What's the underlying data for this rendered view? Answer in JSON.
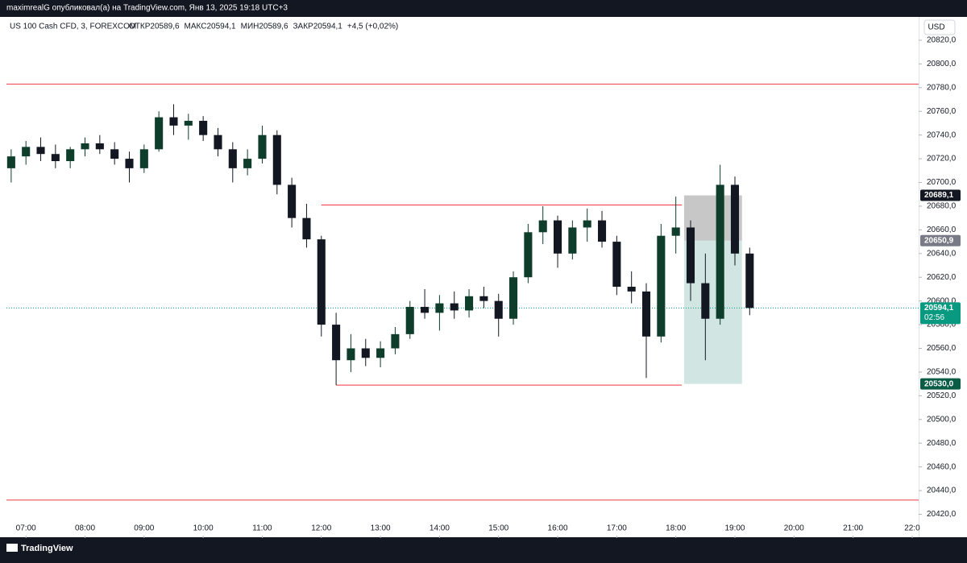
{
  "publisher_line": "maximrealG опубликовал(а) на TradingView.com, Янв 13, 2025 19:18 UTC+3",
  "brand": "TradingView",
  "currency_button": "USD",
  "chart_data": {
    "type": "candlestick",
    "title": "US 100 Cash CFD, 3, FOREXCOM",
    "ohlc_summary": [
      "ОТКР20589,6",
      "МАКС20594,1",
      "МИН20589,6",
      "ЗАКР20594,1",
      "+4,5 (+0,02%)"
    ],
    "up_color": "#0f3d2c",
    "down_color": "#131722",
    "x": [
      6.75,
      7,
      7.25,
      7.5,
      7.75,
      8,
      8.25,
      8.5,
      8.75,
      9,
      9.25,
      9.5,
      9.75,
      10,
      10.25,
      10.5,
      10.75,
      11,
      11.25,
      11.5,
      11.75,
      12,
      12.25,
      12.5,
      12.75,
      13,
      13.25,
      13.5,
      13.75,
      14,
      14.25,
      14.5,
      14.75,
      15,
      15.25,
      15.5,
      15.75,
      16,
      16.25,
      16.5,
      16.75,
      17,
      17.25,
      17.5,
      17.75,
      18,
      18.25,
      18.5,
      18.75,
      19,
      19.25
    ],
    "open": [
      20712,
      20722,
      20730,
      20724,
      20718,
      20728,
      20733,
      20728,
      20720,
      20712,
      20728,
      20755,
      20748,
      20752,
      20740,
      20728,
      20712,
      20720,
      20740,
      20698,
      20670,
      20652,
      20580,
      20550,
      20560,
      20552,
      20560,
      20572,
      20595,
      20590,
      20598,
      20592,
      20604,
      20600,
      20585,
      20620,
      20658,
      20668,
      20640,
      20662,
      20668,
      20650,
      20612,
      20608,
      20570,
      20655,
      20662,
      20615,
      20585,
      20698,
      20640
    ],
    "high": [
      20728,
      20735,
      20738,
      20732,
      20730,
      20738,
      20740,
      20734,
      20726,
      20732,
      20760,
      20766,
      20758,
      20756,
      20746,
      20734,
      20728,
      20748,
      20744,
      20704,
      20682,
      20655,
      20590,
      20572,
      20568,
      20566,
      20578,
      20600,
      20610,
      20605,
      20608,
      20610,
      20612,
      20606,
      20625,
      20665,
      20680,
      20672,
      20668,
      20678,
      20676,
      20655,
      20625,
      20615,
      20665,
      20688,
      20668,
      20640,
      20715,
      20705,
      20645
    ],
    "low": [
      20700,
      20715,
      20718,
      20712,
      20712,
      20722,
      20724,
      20715,
      20700,
      20708,
      20726,
      20740,
      20736,
      20735,
      20722,
      20700,
      20706,
      20716,
      20690,
      20662,
      20645,
      20570,
      20529,
      20540,
      20545,
      20544,
      20555,
      20568,
      20585,
      20575,
      20585,
      20586,
      20594,
      20570,
      20580,
      20615,
      20648,
      20628,
      20635,
      20650,
      20645,
      20605,
      20598,
      20535,
      20565,
      20640,
      20600,
      20550,
      20580,
      20630,
      20588
    ],
    "close": [
      20722,
      20730,
      20724,
      20718,
      20728,
      20733,
      20728,
      20720,
      20712,
      20728,
      20755,
      20748,
      20752,
      20740,
      20728,
      20712,
      20720,
      20740,
      20698,
      20670,
      20652,
      20580,
      20550,
      20560,
      20552,
      20560,
      20572,
      20595,
      20590,
      20598,
      20592,
      20604,
      20600,
      20585,
      20620,
      20658,
      20668,
      20640,
      20662,
      20668,
      20650,
      20612,
      20608,
      20570,
      20655,
      20662,
      20615,
      20585,
      20698,
      20640,
      20594.1
    ],
    "levels": [
      {
        "value": 20783,
        "color": "#f23645"
      },
      {
        "value": 20681,
        "color": "#f23645",
        "from": 12.0,
        "to": 18.1
      },
      {
        "value": 20529,
        "color": "#f23645",
        "from": 12.25,
        "to": 18.1
      },
      {
        "value": 20432,
        "color": "#f23645"
      }
    ],
    "position": {
      "from": 18.14,
      "to": 19.12,
      "entry": 20650.9,
      "stop": 20689.1,
      "target": 20530.0,
      "stop_color": "#a9a9a9",
      "target_color": "#b2d5d0"
    },
    "last_price": {
      "value": 20594.1,
      "label": "20594,1",
      "timer": "02:56",
      "color": "#089981"
    },
    "price_labels": [
      {
        "value": 20689.1,
        "label": "20689,1",
        "color": "#131722"
      },
      {
        "value": 20650.9,
        "label": "20650,9",
        "color": "#787b86"
      },
      {
        "value": 20530.0,
        "label": "20530,0",
        "color": "#0a5c45"
      }
    ],
    "xlim": [
      6.67,
      22.11
    ],
    "ylim": [
      20402,
      20839
    ],
    "xticks": [
      {
        "value": 7,
        "label": "07:00"
      },
      {
        "value": 8,
        "label": "08:00"
      },
      {
        "value": 9,
        "label": "09:00"
      },
      {
        "value": 10,
        "label": "10:00"
      },
      {
        "value": 11,
        "label": "11:00"
      },
      {
        "value": 12,
        "label": "12:00"
      },
      {
        "value": 13,
        "label": "13:00"
      },
      {
        "value": 14,
        "label": "14:00"
      },
      {
        "value": 15,
        "label": "15:00"
      },
      {
        "value": 16,
        "label": "16:00"
      },
      {
        "value": 17,
        "label": "17:00"
      },
      {
        "value": 18,
        "label": "18:00"
      },
      {
        "value": 19,
        "label": "19:00"
      },
      {
        "value": 20,
        "label": "20:00"
      },
      {
        "value": 21,
        "label": "21:00"
      },
      {
        "value": 22,
        "label": "22:0"
      }
    ],
    "yticks": [
      {
        "value": 20420,
        "label": "20420,0"
      },
      {
        "value": 20440,
        "label": "20440,0"
      },
      {
        "value": 20460,
        "label": "20460,0"
      },
      {
        "value": 20480,
        "label": "20480,0"
      },
      {
        "value": 20500,
        "label": "20500,0"
      },
      {
        "value": 20520,
        "label": "20520,0"
      },
      {
        "value": 20540,
        "label": "20540,0"
      },
      {
        "value": 20560,
        "label": "20560,0"
      },
      {
        "value": 20580,
        "label": "20580,0"
      },
      {
        "value": 20600,
        "label": "20600,0"
      },
      {
        "value": 20620,
        "label": "20620,0"
      },
      {
        "value": 20640,
        "label": "20640,0"
      },
      {
        "value": 20660,
        "label": "20660,0"
      },
      {
        "value": 20680,
        "label": "20680,0"
      },
      {
        "value": 20700,
        "label": "20700,0"
      },
      {
        "value": 20720,
        "label": "20720,0"
      },
      {
        "value": 20740,
        "label": "20740,0"
      },
      {
        "value": 20760,
        "label": "20760,0"
      },
      {
        "value": 20780,
        "label": "20780,0"
      },
      {
        "value": 20800,
        "label": "20800,0"
      },
      {
        "value": 20820,
        "label": "20820,0"
      }
    ]
  }
}
